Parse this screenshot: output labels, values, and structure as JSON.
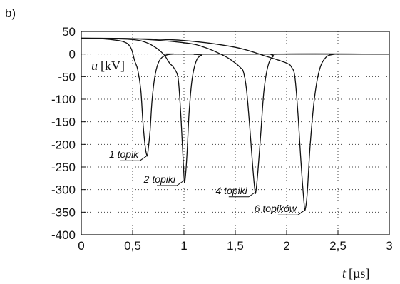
{
  "panel_label": "b)",
  "chart_data": {
    "type": "line",
    "xlabel": {
      "symbol": "t",
      "unit": "[µs]"
    },
    "ylabel": {
      "symbol": "u",
      "unit": "[kV]"
    },
    "xlim": [
      0,
      3
    ],
    "ylim": [
      -400,
      50
    ],
    "x_ticks": [
      0,
      0.5,
      1,
      1.5,
      2,
      2.5,
      3
    ],
    "x_tick_labels": [
      "0",
      "0,5",
      "1",
      "1,5",
      "2",
      "2,5",
      "3"
    ],
    "y_ticks": [
      50,
      0,
      -50,
      -100,
      -150,
      -200,
      -250,
      -300,
      -350,
      -400
    ],
    "y_tick_labels": [
      "50",
      "0",
      "-50",
      "-100",
      "-150",
      "-200",
      "-250",
      "-300",
      "-350",
      "-400"
    ],
    "grid": true,
    "series": [
      {
        "name": "1 topik",
        "x": [
          0,
          0.2,
          0.4,
          0.48,
          0.52,
          0.55,
          0.58,
          0.6,
          0.62,
          0.64,
          0.65,
          0.67,
          0.69,
          0.72,
          0.76,
          0.82,
          0.9,
          1.0,
          3.0
        ],
        "y": [
          35,
          34,
          28,
          15,
          -15,
          -35,
          -80,
          -150,
          -200,
          -225,
          -215,
          -170,
          -100,
          -45,
          -15,
          -3,
          0,
          0,
          0
        ]
      },
      {
        "name": "2 topiki",
        "x": [
          0,
          0.3,
          0.5,
          0.6,
          0.7,
          0.8,
          0.86,
          0.9,
          0.94,
          0.96,
          0.98,
          1.0,
          1.01,
          1.03,
          1.05,
          1.08,
          1.12,
          1.17,
          1.25,
          3.0
        ],
        "y": [
          35,
          34,
          32,
          28,
          18,
          0,
          -20,
          -30,
          -50,
          -100,
          -180,
          -270,
          -280,
          -220,
          -130,
          -55,
          -15,
          -3,
          0,
          0
        ]
      },
      {
        "name": "4 topiki",
        "x": [
          0,
          0.5,
          1.0,
          1.2,
          1.4,
          1.5,
          1.55,
          1.58,
          1.61,
          1.64,
          1.67,
          1.69,
          1.7,
          1.72,
          1.75,
          1.78,
          1.82,
          1.87,
          1.95,
          3.0
        ],
        "y": [
          35,
          34,
          25,
          15,
          -5,
          -20,
          -30,
          -40,
          -80,
          -160,
          -250,
          -300,
          -305,
          -260,
          -170,
          -80,
          -25,
          -5,
          0,
          0
        ]
      },
      {
        "name": "6 topików",
        "x": [
          0,
          0.5,
          1.0,
          1.5,
          1.8,
          2.0,
          2.05,
          2.08,
          2.11,
          2.14,
          2.17,
          2.18,
          2.2,
          2.23,
          2.27,
          2.32,
          2.38,
          2.45,
          2.55,
          3.0
        ],
        "y": [
          35,
          34,
          30,
          15,
          -5,
          -20,
          -30,
          -50,
          -130,
          -240,
          -330,
          -345,
          -310,
          -200,
          -100,
          -35,
          -8,
          -1,
          0,
          0
        ]
      }
    ],
    "annotations": [
      {
        "text": "1 topik",
        "target_x": 0.64,
        "target_y": -225
      },
      {
        "text": "2 topiki",
        "target_x": 1.0,
        "target_y": -280
      },
      {
        "text": "4 topiki",
        "target_x": 1.7,
        "target_y": -305
      },
      {
        "text": "6 topików",
        "target_x": 2.18,
        "target_y": -345
      }
    ]
  }
}
